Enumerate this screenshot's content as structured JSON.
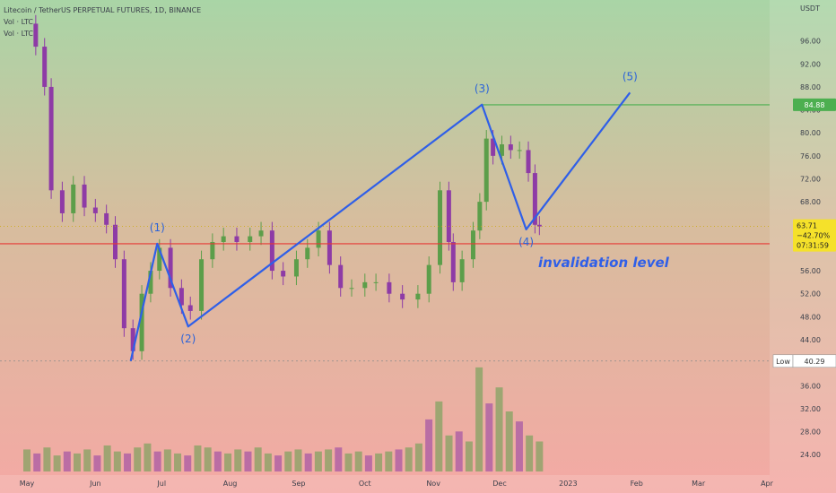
{
  "header": {
    "title": "Litecoin / TetherUS PERPETUAL FUTURES, 1D, BINANCE",
    "vol_line_1": "Vol · LTC",
    "vol_line_2": "Vol · LTC"
  },
  "colors": {
    "bg_top": "#a9d5a6",
    "bg_bottom": "#f4a9a4",
    "wave": "#2f5fe8",
    "resistance": "#4caf50",
    "invalidation": "#e53935",
    "candle_up": "#5c9e4a",
    "candle_down": "#8e3ba6",
    "label": "#2b63d9"
  },
  "chart_data": {
    "type": "candlestick",
    "title": "Litecoin / TetherUS PERPETUAL FUTURES, 1D, BINANCE",
    "y_unit": "USDT",
    "y_ticks": [
      96,
      92,
      88,
      84,
      80,
      76,
      72,
      68,
      64,
      60,
      56,
      52,
      48,
      44,
      40,
      36,
      32,
      28,
      24
    ],
    "x_ticks": [
      "May",
      "Jun",
      "Jul",
      "Aug",
      "Sep",
      "Oct",
      "Nov",
      "Dec",
      "2023",
      "Feb",
      "Mar",
      "Apr"
    ],
    "ylim": [
      22,
      100
    ],
    "price_series": [
      {
        "date": "2022-05-01",
        "value": 99
      },
      {
        "date": "2022-05-05",
        "value": 95
      },
      {
        "date": "2022-05-09",
        "value": 88
      },
      {
        "date": "2022-05-12",
        "value": 70
      },
      {
        "date": "2022-05-17",
        "value": 66
      },
      {
        "date": "2022-05-22",
        "value": 71
      },
      {
        "date": "2022-05-27",
        "value": 67
      },
      {
        "date": "2022-06-01",
        "value": 66
      },
      {
        "date": "2022-06-06",
        "value": 64
      },
      {
        "date": "2022-06-10",
        "value": 58
      },
      {
        "date": "2022-06-14",
        "value": 46
      },
      {
        "date": "2022-06-18",
        "value": 42
      },
      {
        "date": "2022-06-22",
        "value": 52
      },
      {
        "date": "2022-06-26",
        "value": 56
      },
      {
        "date": "2022-06-30",
        "value": 60
      },
      {
        "date": "2022-07-05",
        "value": 53
      },
      {
        "date": "2022-07-10",
        "value": 50
      },
      {
        "date": "2022-07-14",
        "value": 49
      },
      {
        "date": "2022-07-19",
        "value": 58
      },
      {
        "date": "2022-07-24",
        "value": 61
      },
      {
        "date": "2022-07-29",
        "value": 62
      },
      {
        "date": "2022-08-04",
        "value": 61
      },
      {
        "date": "2022-08-10",
        "value": 62
      },
      {
        "date": "2022-08-15",
        "value": 63
      },
      {
        "date": "2022-08-20",
        "value": 56
      },
      {
        "date": "2022-08-25",
        "value": 55
      },
      {
        "date": "2022-08-31",
        "value": 58
      },
      {
        "date": "2022-09-05",
        "value": 60
      },
      {
        "date": "2022-09-10",
        "value": 63
      },
      {
        "date": "2022-09-15",
        "value": 57
      },
      {
        "date": "2022-09-20",
        "value": 53
      },
      {
        "date": "2022-09-25",
        "value": 53
      },
      {
        "date": "2022-10-01",
        "value": 54
      },
      {
        "date": "2022-10-06",
        "value": 54
      },
      {
        "date": "2022-10-12",
        "value": 52
      },
      {
        "date": "2022-10-18",
        "value": 51
      },
      {
        "date": "2022-10-25",
        "value": 52
      },
      {
        "date": "2022-10-30",
        "value": 57
      },
      {
        "date": "2022-11-04",
        "value": 70
      },
      {
        "date": "2022-11-08",
        "value": 61
      },
      {
        "date": "2022-11-10",
        "value": 54
      },
      {
        "date": "2022-11-14",
        "value": 58
      },
      {
        "date": "2022-11-19",
        "value": 63
      },
      {
        "date": "2022-11-22",
        "value": 68
      },
      {
        "date": "2022-11-25",
        "value": 79
      },
      {
        "date": "2022-11-28",
        "value": 76
      },
      {
        "date": "2022-12-02",
        "value": 78
      },
      {
        "date": "2022-12-06",
        "value": 77
      },
      {
        "date": "2022-12-10",
        "value": 77
      },
      {
        "date": "2022-12-14",
        "value": 73
      },
      {
        "date": "2022-12-17",
        "value": 64
      },
      {
        "date": "2022-12-19",
        "value": 63.71
      }
    ],
    "volume_series": {
      "range": [
        0,
        60
      ],
      "values": [
        11,
        9,
        12,
        8,
        10,
        9,
        11,
        8,
        13,
        10,
        9,
        12,
        14,
        10,
        11,
        9,
        8,
        13,
        12,
        10,
        9,
        11,
        10,
        12,
        9,
        8,
        10,
        11,
        9,
        10,
        11,
        12,
        9,
        10,
        8,
        9,
        10,
        11,
        12,
        14,
        26,
        35,
        18,
        20,
        15,
        52,
        34,
        42,
        30,
        25,
        18,
        15
      ]
    },
    "wave_points": [
      {
        "label": "(1)",
        "date": "2022-06-29",
        "value": 60.7
      },
      {
        "label": "(2)",
        "date": "2022-07-13",
        "value": 46.3
      },
      {
        "label": "(3)",
        "date": "2022-11-23",
        "value": 84.9
      },
      {
        "label": "(4)",
        "date": "2022-12-13",
        "value": 63.2
      },
      {
        "label": "(5)",
        "date": "2023-01-29",
        "value": 87.0
      }
    ],
    "wave_start": {
      "date": "2022-06-17",
      "value": 40.3
    },
    "levels": [
      {
        "name": "resistance",
        "value": 84.88,
        "label": "84.88",
        "start_date": "2022-11-23"
      },
      {
        "name": "invalidation level",
        "value": 60.7,
        "label": "invalidation level"
      }
    ],
    "current_price": {
      "value_label": "63.71",
      "change_label": "−42.70%",
      "countdown": "07:31:59"
    },
    "low_marker": {
      "label": "Low",
      "value": 40.29,
      "value_label": "40.29"
    }
  }
}
